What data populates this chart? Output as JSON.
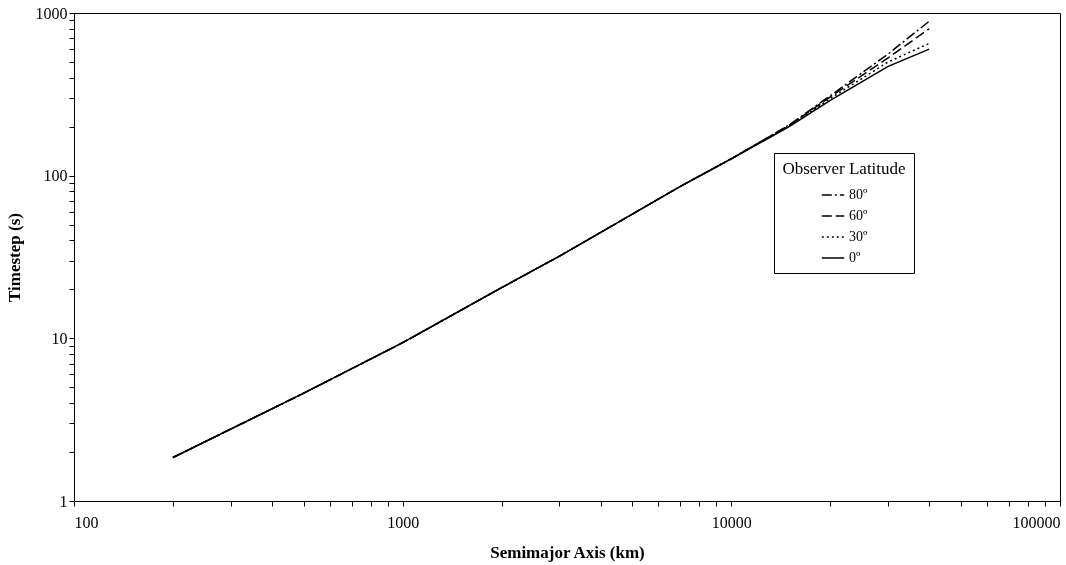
{
  "chart_data": {
    "type": "line",
    "xlabel": "Semimajor Axis (km)",
    "ylabel": "Timestep (s)",
    "legend_title": "Observer Latitude",
    "legend": "right",
    "log": "xy",
    "grid": false,
    "marker": "none",
    "xlim": [
      100,
      100000
    ],
    "ylim": [
      1,
      1000
    ],
    "xticks": [
      100,
      {
        "value": 200,
        "label": null
      },
      {
        "value": 300,
        "label": null
      },
      {
        "value": 400,
        "label": null
      },
      {
        "value": 500,
        "label": null
      },
      {
        "value": 600,
        "label": null
      },
      {
        "value": 700,
        "label": null
      },
      {
        "value": 800,
        "label": null
      },
      {
        "value": 900,
        "label": null
      },
      1000,
      {
        "value": 2000,
        "label": null
      },
      {
        "value": 3000,
        "label": null
      },
      {
        "value": 4000,
        "label": null
      },
      {
        "value": 5000,
        "label": null
      },
      {
        "value": 6000,
        "label": null
      },
      {
        "value": 7000,
        "label": null
      },
      {
        "value": 8000,
        "label": null
      },
      {
        "value": 9000,
        "label": null
      },
      10000,
      {
        "value": 20000,
        "label": null
      },
      {
        "value": 30000,
        "label": null
      },
      {
        "value": 40000,
        "label": null
      },
      {
        "value": 50000,
        "label": null
      },
      {
        "value": 60000,
        "label": null
      },
      {
        "value": 70000,
        "label": null
      },
      {
        "value": 80000,
        "label": null
      },
      {
        "value": 90000,
        "label": null
      },
      100000
    ],
    "yticks": [
      1,
      {
        "value": 2,
        "label": null
      },
      {
        "value": 3,
        "label": null
      },
      {
        "value": 4,
        "label": null
      },
      {
        "value": 5,
        "label": null
      },
      {
        "value": 6,
        "label": null
      },
      {
        "value": 7,
        "label": null
      },
      {
        "value": 8,
        "label": null
      },
      {
        "value": 9,
        "label": null
      },
      10,
      {
        "value": 20,
        "label": null
      },
      {
        "value": 30,
        "label": null
      },
      {
        "value": 40,
        "label": null
      },
      {
        "value": 50,
        "label": null
      },
      {
        "value": 60,
        "label": null
      },
      {
        "value": 70,
        "label": null
      },
      {
        "value": 80,
        "label": null
      },
      {
        "value": 90,
        "label": null
      },
      100,
      {
        "value": 200,
        "label": null
      },
      {
        "value": 300,
        "label": null
      },
      {
        "value": 400,
        "label": null
      },
      {
        "value": 500,
        "label": null
      },
      {
        "value": 600,
        "label": null
      },
      {
        "value": 700,
        "label": null
      },
      {
        "value": 800,
        "label": null
      },
      {
        "value": 900,
        "label": null
      },
      1000
    ],
    "x": [
      200,
      500,
      1000,
      2000,
      3000,
      5000,
      7000,
      10000,
      15000,
      20000,
      30000,
      40000
    ],
    "series": [
      {
        "name": "80º",
        "color": "#000000",
        "line_style": "dashdot",
        "values": [
          1.85,
          4.6,
          9.4,
          20.5,
          32,
          58,
          86,
          127,
          205,
          310,
          560,
          890
        ]
      },
      {
        "name": "60º",
        "color": "#000000",
        "line_style": "dashed",
        "values": [
          1.85,
          4.6,
          9.4,
          20.5,
          32,
          58,
          86,
          127,
          204,
          305,
          530,
          800
        ]
      },
      {
        "name": "30º",
        "color": "#000000",
        "line_style": "dotted",
        "values": [
          1.85,
          4.6,
          9.4,
          20.5,
          32,
          58,
          86,
          127,
          202,
          298,
          500,
          650
        ]
      },
      {
        "name": "0º",
        "color": "#000000",
        "line_style": "solid",
        "values": [
          1.85,
          4.6,
          9.4,
          20.5,
          32,
          58,
          86,
          127,
          200,
          290,
          470,
          600
        ]
      }
    ]
  }
}
